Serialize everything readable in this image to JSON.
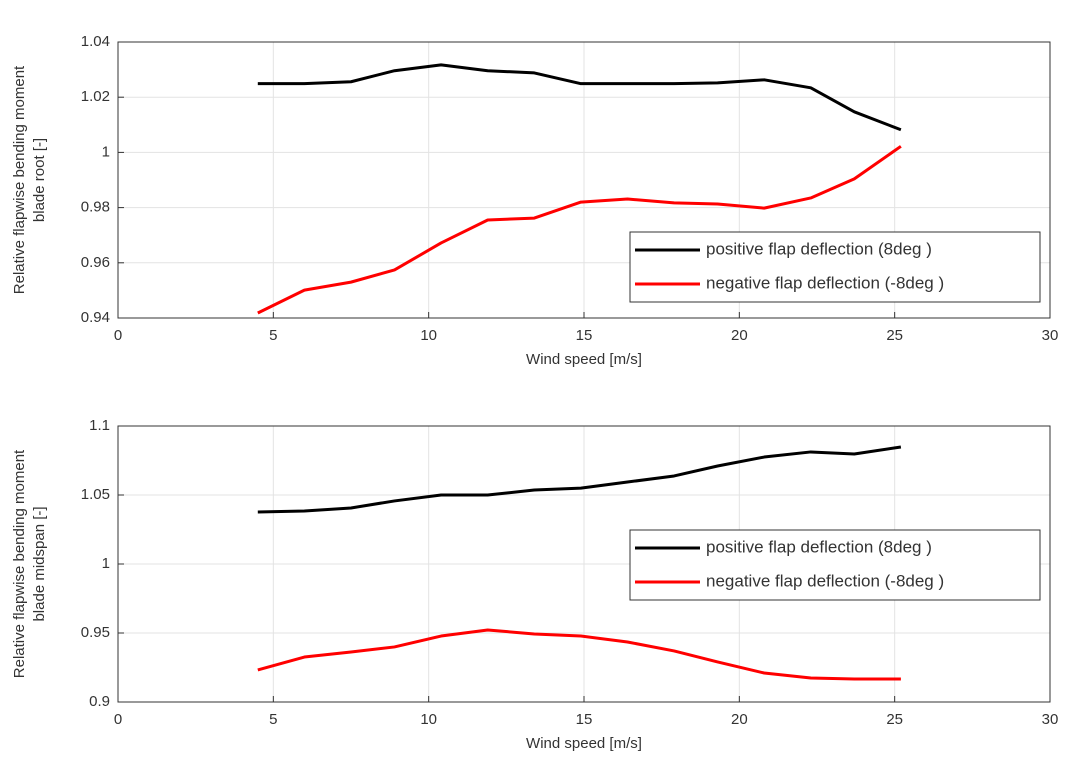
{
  "chart_data": [
    {
      "type": "line",
      "xlabel": "Wind speed [m/s]",
      "ylabel": [
        "Relative flapwise bending moment",
        "blade root [-]"
      ],
      "x": [
        4.5,
        6,
        7.5,
        8.9,
        10.4,
        11.9,
        13.4,
        14.9,
        16.4,
        17.9,
        19.3,
        20.8,
        22.3,
        23.7,
        25.2
      ],
      "series": [
        {
          "name": "positive flap deflection (8deg )",
          "color": "#000000",
          "values": [
            1.0249,
            1.0249,
            1.0256,
            1.0296,
            1.0317,
            1.0296,
            1.0288,
            1.0249,
            1.0249,
            1.0249,
            1.0252,
            1.0263,
            1.0234,
            1.0147,
            1.0082
          ]
        },
        {
          "name": "negative flap deflection (-8deg )",
          "color": "#ff0000",
          "values": [
            0.9418,
            0.9501,
            0.953,
            0.9574,
            0.9672,
            0.9755,
            0.9762,
            0.982,
            0.9831,
            0.9817,
            0.9813,
            0.9798,
            0.9835,
            0.9904,
            1.0022
          ]
        }
      ],
      "xlim": [
        0,
        30
      ],
      "xticks": [
        0,
        5,
        10,
        15,
        20,
        25,
        30
      ],
      "ylim": [
        0.94,
        1.04
      ],
      "yticks": [
        0.94,
        0.96,
        0.98,
        1,
        1.02,
        1.04
      ],
      "grid": true,
      "legend": "southeast"
    },
    {
      "type": "line",
      "xlabel": "Wind speed [m/s]",
      "ylabel": [
        "Relative flapwise bending moment",
        "blade midspan [-]"
      ],
      "x": [
        4.5,
        6,
        7.5,
        8.9,
        10.4,
        11.9,
        13.4,
        14.9,
        16.4,
        17.9,
        19.3,
        20.8,
        22.3,
        23.7,
        25.2
      ],
      "series": [
        {
          "name": "positive flap deflection (8deg )",
          "color": "#000000",
          "values": [
            1.0377,
            1.0384,
            1.0406,
            1.0457,
            1.05,
            1.05,
            1.0536,
            1.055,
            1.0594,
            1.0638,
            1.071,
            1.0775,
            1.0812,
            1.0797,
            1.0848
          ]
        },
        {
          "name": "negative flap deflection (-8deg )",
          "color": "#ff0000",
          "values": [
            0.9232,
            0.9326,
            0.9362,
            0.9399,
            0.9478,
            0.9522,
            0.9493,
            0.9478,
            0.9435,
            0.937,
            0.929,
            0.921,
            0.9174,
            0.9167,
            0.9167
          ]
        }
      ],
      "xlim": [
        0,
        30
      ],
      "xticks": [
        0,
        5,
        10,
        15,
        20,
        25,
        30
      ],
      "ylim": [
        0.9,
        1.1
      ],
      "yticks": [
        0.9,
        0.95,
        1,
        1.05,
        1.1
      ],
      "grid": true,
      "legend": "east"
    }
  ]
}
